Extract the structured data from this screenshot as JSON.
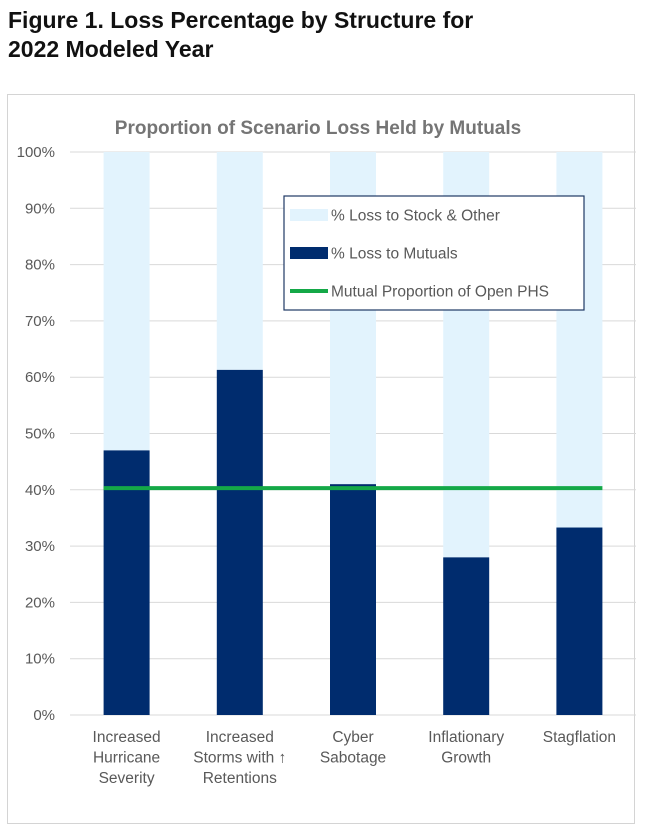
{
  "figure_title_line1": "Figure 1. Loss Percentage by Structure for",
  "figure_title_line2": "2022 Modeled Year",
  "colors": {
    "stock_other": "#e2f3fd",
    "mutuals": "#002c6e",
    "open_phs_line": "#14a847",
    "grid": "#d9d9d9",
    "axis_text": "#595959",
    "chart_title": "#757575",
    "legend_border": "#1f3864"
  },
  "chart_data": {
    "type": "bar",
    "stacked": true,
    "title": "Proportion of Scenario Loss Held by Mutuals",
    "categories": [
      [
        "Increased",
        "Hurricane",
        "Severity"
      ],
      [
        "Increased",
        "Storms with ↑",
        "Retentions"
      ],
      [
        "Cyber",
        "Sabotage"
      ],
      [
        "Inflationary",
        "Growth"
      ],
      [
        "Stagflation"
      ]
    ],
    "series": [
      {
        "name": "% Loss to Mutuals",
        "values": [
          47,
          61.3,
          41,
          28,
          33.3
        ]
      },
      {
        "name": "% Loss to Stock & Other",
        "values": [
          53,
          38.7,
          59,
          72,
          66.7
        ]
      }
    ],
    "line_series": {
      "name": "Mutual Proportion of Open PHS",
      "value": 40.3
    },
    "yticks": [
      "0%",
      "10%",
      "20%",
      "30%",
      "40%",
      "50%",
      "60%",
      "70%",
      "80%",
      "90%",
      "100%"
    ],
    "ylim": [
      0,
      100
    ],
    "grid": true,
    "legend": [
      {
        "name": "% Loss to Stock & Other",
        "kind": "box",
        "color_key": "stock_other"
      },
      {
        "name": "% Loss to Mutuals",
        "kind": "box",
        "color_key": "mutuals"
      },
      {
        "name": "Mutual Proportion of Open PHS",
        "kind": "line",
        "color_key": "open_phs_line"
      }
    ],
    "legend_placement": "top-right"
  }
}
